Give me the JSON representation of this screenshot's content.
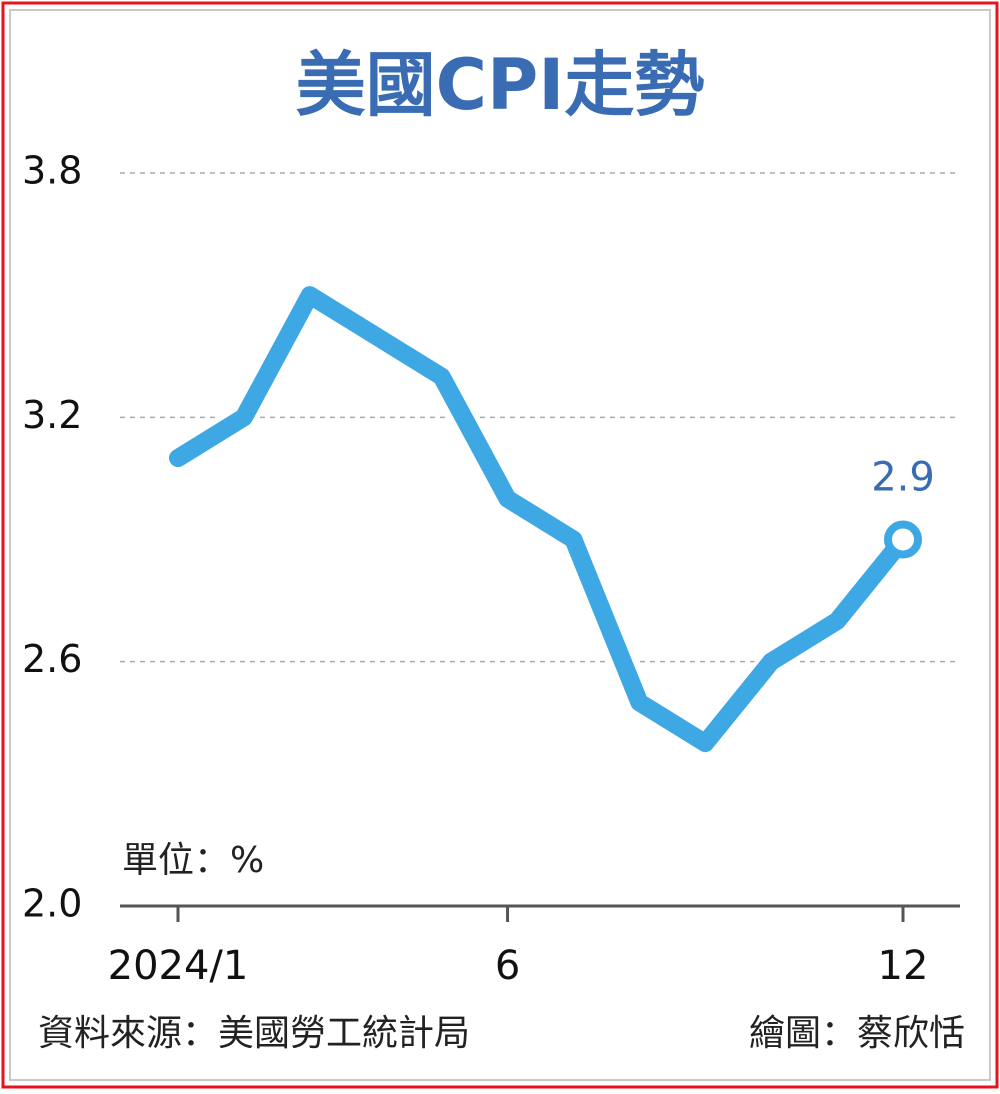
{
  "chart_data": {
    "type": "line",
    "title": "美國CPI走勢",
    "unit_label": "單位：%",
    "source": "資料來源：美國勞工統計局",
    "credit": "繪圖：蔡欣恬",
    "categories": [
      "2024/1",
      null,
      null,
      null,
      null,
      "6",
      null,
      null,
      null,
      null,
      null,
      "12"
    ],
    "values": [
      3.1,
      3.2,
      3.5,
      3.4,
      3.3,
      3.0,
      2.9,
      2.5,
      2.4,
      2.6,
      2.7,
      2.9
    ],
    "color": "#3ea8e5",
    "ylim": [
      2.0,
      3.8
    ],
    "yticks": [
      {
        "value": 2.0,
        "label": "2.0"
      },
      2.6,
      3.2,
      3.8
    ],
    "grid": true
  }
}
